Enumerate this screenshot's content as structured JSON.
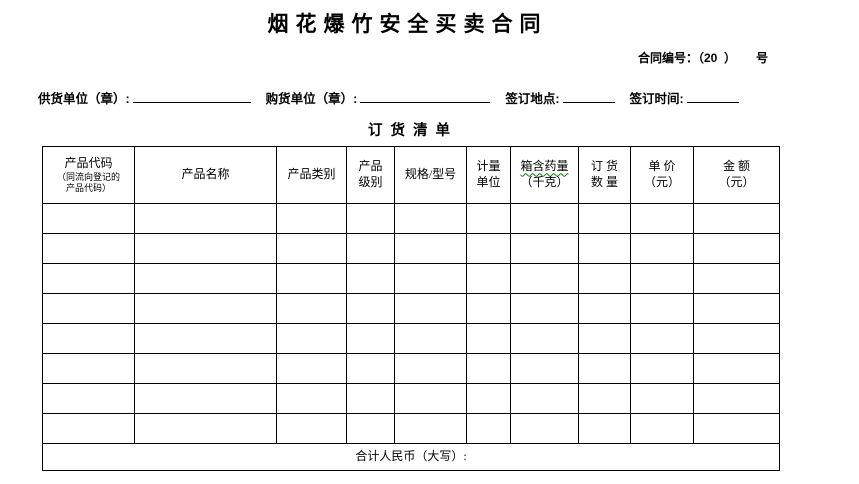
{
  "document": {
    "title": "烟花爆竹安全买卖合同",
    "contract_no_line": "合同编号：（20  ）      号",
    "parties": {
      "supplier_label": "供货单位（章）:",
      "buyer_label": "购货单位（章）:",
      "sign_place_label": "签订地点:",
      "sign_time_label": "签订时间:"
    },
    "order_table": {
      "caption": "订 货 清 单",
      "columns": [
        {
          "l1": "产品代码",
          "l2": "（同流向登记的",
          "l3": "产品代码）"
        },
        {
          "l1": "产品名称"
        },
        {
          "l1": "产品类别"
        },
        {
          "l1": "产品",
          "l2": "级别"
        },
        {
          "l1": "规格/型号"
        },
        {
          "l1": "计量",
          "l2": "单位"
        },
        {
          "l1": "箱含药量",
          "l2": "（千克）"
        },
        {
          "l1": "订 货",
          "l2": "数 量"
        },
        {
          "l1": "单 价",
          "l2": "（元）"
        },
        {
          "l1": "金 额",
          "l2": "（元）"
        }
      ],
      "empty_row_count": 8,
      "column_count": 10,
      "footer_label": "合计人民币（大写）:"
    }
  },
  "colors": {
    "text": "#000000",
    "border": "#000000",
    "background": "#ffffff",
    "spellcheck_underline": "#008000"
  }
}
